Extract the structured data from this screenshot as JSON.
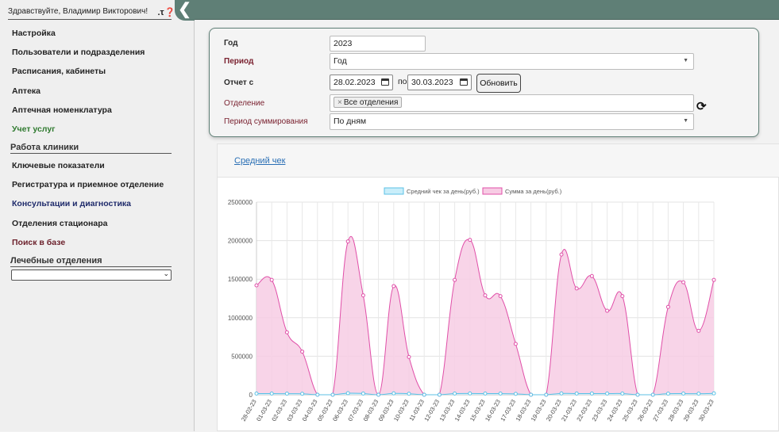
{
  "header": {
    "greeting": "Здравствуйте, Владимир Викторович!",
    "icons": [
      "key-icon",
      "help-icon"
    ],
    "collapse_icon": "chevron-left-icon"
  },
  "sidebar": {
    "items": [
      {
        "label": "Настройка",
        "color": "dark"
      },
      {
        "label": "Пользователи и подразделения",
        "color": "dark"
      },
      {
        "label": "Расписания, кабинеты",
        "color": "dark"
      },
      {
        "label": "Аптека",
        "color": "dark"
      },
      {
        "label": "Аптечная номенклатура",
        "color": "dark"
      },
      {
        "label": "Учет услуг",
        "color": "green"
      }
    ],
    "section_clinic": "Работа клиники",
    "clinic_items": [
      {
        "label": "Ключевые показатели",
        "color": "dark"
      },
      {
        "label": "Регистратура и приемное отделение",
        "color": "dark"
      },
      {
        "label": "Консультации и диагностика",
        "color": "navy"
      },
      {
        "label": "Отделения стационара",
        "color": "dark"
      },
      {
        "label": "Поиск в базе",
        "color": "maroon"
      }
    ],
    "section_depts": "Лечебные отделения",
    "dept_select_value": ""
  },
  "filters": {
    "year_label": "Год",
    "year_value": "2023",
    "period_label": "Период",
    "period_value": "Год",
    "report_label": "Отчет с",
    "date_from": "28.02.2023",
    "to_label": "по",
    "date_to": "30.03.2023",
    "refresh_button": "Обновить",
    "dept_label": "Отделение",
    "dept_chip": "Все отделения",
    "dept_chip_remove": "×",
    "sum_period_label": "Период суммирования",
    "sum_period_value": "По дням"
  },
  "chart_tab": {
    "link": "Средний чек"
  },
  "colors": {
    "topbar": "#5f7f76",
    "series_sum": "#e04fa8",
    "series_sum_fill": "#f7cce4",
    "series_avg": "#5cc2e6",
    "series_avg_fill": "#c9eefa"
  },
  "chart_data": {
    "type": "area",
    "title": "",
    "xlabel": "",
    "ylabel": "",
    "ylim": [
      0,
      2500000
    ],
    "yticks": [
      0,
      500000,
      1000000,
      1500000,
      2000000,
      2500000
    ],
    "legend_position": "top",
    "grid": true,
    "categories": [
      "28-02-23",
      "01-03-23",
      "02-03-23",
      "03-03-23",
      "04-03-23",
      "05-03-23",
      "06-03-23",
      "07-03-23",
      "08-03-23",
      "09-03-23",
      "10-03-23",
      "11-03-23",
      "12-03-23",
      "13-03-23",
      "14-03-23",
      "15-03-23",
      "16-03-23",
      "17-03-23",
      "18-03-23",
      "19-03-23",
      "20-03-23",
      "21-03-23",
      "22-03-23",
      "23-03-23",
      "24-03-23",
      "25-03-23",
      "26-03-23",
      "27-03-23",
      "28-03-23",
      "29-03-23",
      "30-03-23"
    ],
    "series": [
      {
        "name": "Средний чек за день(руб.)",
        "values": [
          15000,
          15000,
          14000,
          13000,
          0,
          0,
          20000,
          16000,
          0,
          18000,
          13000,
          0,
          0,
          15000,
          17000,
          15000,
          15000,
          12000,
          0,
          0,
          17000,
          16000,
          16000,
          15000,
          15000,
          0,
          0,
          14000,
          15000,
          14000,
          18000
        ]
      },
      {
        "name": "Сумма за день(руб.)",
        "values": [
          1420000,
          1490000,
          810000,
          560000,
          0,
          0,
          1990000,
          1290000,
          0,
          1410000,
          490000,
          0,
          0,
          1490000,
          2010000,
          1290000,
          1280000,
          660000,
          0,
          0,
          1820000,
          1380000,
          1540000,
          1090000,
          1280000,
          0,
          0,
          1140000,
          1460000,
          830000,
          1490000
        ]
      }
    ]
  }
}
